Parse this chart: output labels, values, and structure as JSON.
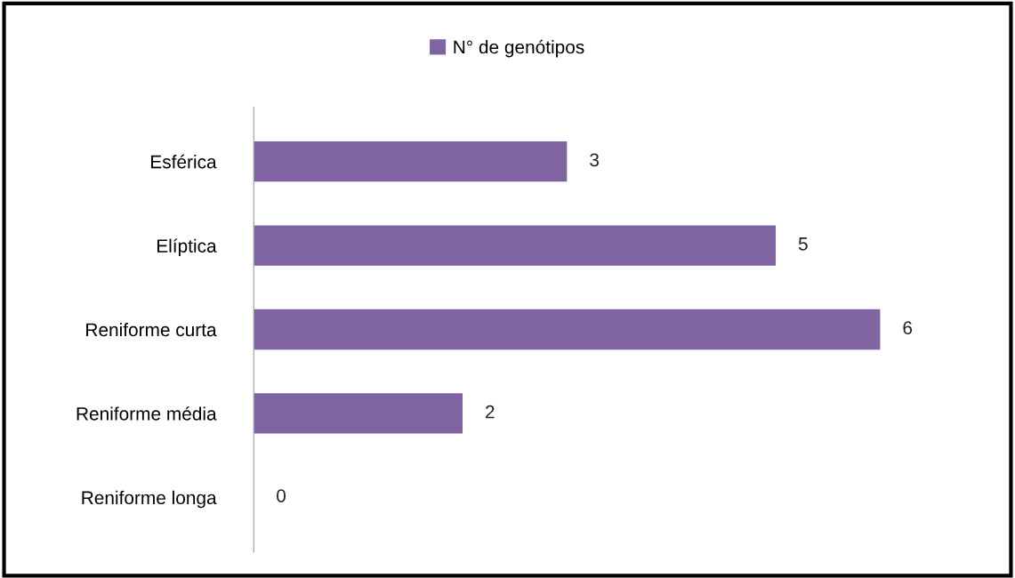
{
  "chart_data": {
    "type": "bar",
    "orientation": "horizontal",
    "categories": [
      "Esférica",
      "Elíptica",
      "Reniforme curta",
      "Reniforme média",
      "Reniforme longa"
    ],
    "series": [
      {
        "name": "N° de genótipos",
        "color": "#8064a2",
        "values": [
          3,
          5,
          6,
          2,
          0
        ]
      }
    ],
    "tick_labels": "y",
    "data_labels": true,
    "legend": "top",
    "grid": false
  }
}
